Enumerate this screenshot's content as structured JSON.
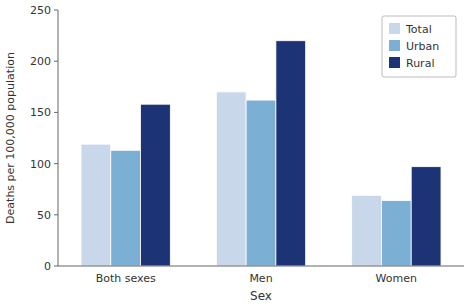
{
  "chart_data": {
    "type": "bar",
    "categories": [
      "Both sexes",
      "Men",
      "Women"
    ],
    "series": [
      {
        "name": "Total",
        "color": "#c8d8ea",
        "values": [
          119,
          170,
          69
        ]
      },
      {
        "name": "Urban",
        "color": "#7bafd4",
        "values": [
          113,
          162,
          64
        ]
      },
      {
        "name": "Rural",
        "color": "#1c3475",
        "values": [
          158,
          220,
          97
        ]
      }
    ],
    "xlabel": "Sex",
    "ylabel": "Deaths per 100,000 population",
    "ylim": [
      0,
      250
    ],
    "yticks": [
      0,
      50,
      100,
      150,
      200,
      250
    ],
    "grid": false,
    "legend": "upper-right"
  }
}
